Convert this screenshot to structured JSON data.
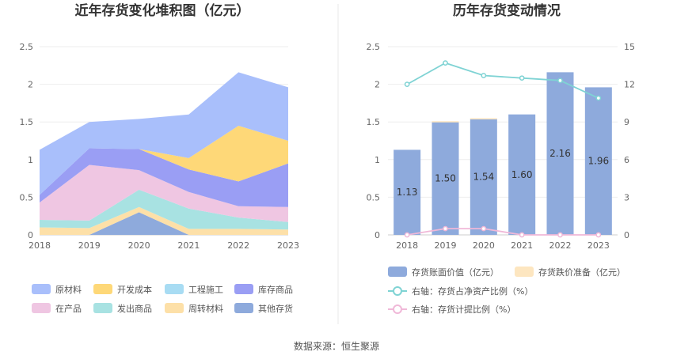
{
  "source": "数据来源：恒生聚源",
  "chart_data": [
    {
      "type": "area",
      "stacked": true,
      "title": "近年存货变化堆积图（亿元）",
      "x": [
        "2018",
        "2019",
        "2020",
        "2021",
        "2022",
        "2023"
      ],
      "ylim": [
        0,
        2.5
      ],
      "yticks": [
        "0",
        "0.5",
        "1",
        "1.5",
        "2",
        "2.5"
      ],
      "series": [
        {
          "name": "其他存货",
          "color": "#8eaadc",
          "values": [
            0.0,
            0.0,
            0.3,
            0.0,
            0.0,
            0.0
          ]
        },
        {
          "name": "周转材料",
          "color": "#fde0a8",
          "values": [
            0.1,
            0.09,
            0.07,
            0.08,
            0.08,
            0.07
          ]
        },
        {
          "name": "发出商品",
          "color": "#a8e2e2",
          "values": [
            0.1,
            0.1,
            0.23,
            0.27,
            0.15,
            0.1
          ]
        },
        {
          "name": "在产品",
          "color": "#efc6e2",
          "values": [
            0.23,
            0.74,
            0.26,
            0.22,
            0.15,
            0.2
          ]
        },
        {
          "name": "库存商品",
          "color": "#9a9ef4",
          "values": [
            0.1,
            0.22,
            0.28,
            0.3,
            0.33,
            0.58
          ]
        },
        {
          "name": "工程施工",
          "color": "#a8dcf3",
          "values": [
            0.0,
            0.0,
            0.0,
            0.0,
            0.0,
            0.0
          ]
        },
        {
          "name": "开发成本",
          "color": "#fed878",
          "values": [
            0.0,
            0.0,
            0.0,
            0.15,
            0.74,
            0.3
          ]
        },
        {
          "name": "原材料",
          "color": "#a9bffb",
          "values": [
            0.6,
            0.35,
            0.4,
            0.58,
            0.71,
            0.71
          ]
        }
      ],
      "legend": {
        "position": "bottom",
        "order": [
          "原材料",
          "开发成本",
          "工程施工",
          "库存商品",
          "在产品",
          "发出商品",
          "周转材料",
          "其他存货"
        ]
      }
    },
    {
      "type": "bar",
      "title": "历年存货变动情况",
      "categories": [
        "2018",
        "2019",
        "2020",
        "2021",
        "2022",
        "2023"
      ],
      "ylim": [
        0,
        2.5
      ],
      "yticks": [
        "0",
        "0.5",
        "1",
        "1.5",
        "2",
        "2.5"
      ],
      "y2lim": [
        0,
        15
      ],
      "y2ticks": [
        "0",
        "3",
        "6",
        "9",
        "12",
        "15"
      ],
      "series": [
        {
          "name": "存货账面价值（亿元）",
          "type": "bar",
          "axis": "left",
          "color": "#8eaadc",
          "values": [
            1.13,
            1.5,
            1.54,
            1.6,
            2.16,
            1.96
          ],
          "labels": [
            "1.13",
            "1.50",
            "1.54",
            "1.60",
            "2.16",
            "1.96"
          ]
        },
        {
          "name": "存货跌价准备（亿元）",
          "type": "bar",
          "axis": "left",
          "stacked": true,
          "color": "#fde6c0",
          "values": [
            0.0,
            0.01,
            0.01,
            0.0,
            0.0,
            0.0
          ]
        },
        {
          "name": "右轴：存货占净资产比例（%）",
          "type": "line",
          "axis": "right",
          "color": "#7fd3d4",
          "values": [
            12.0,
            13.7,
            12.7,
            12.5,
            12.3,
            10.9
          ]
        },
        {
          "name": "右轴：存货计提比例（%）",
          "type": "line",
          "axis": "right",
          "color": "#f0b8d8",
          "values": [
            0.0,
            0.5,
            0.5,
            0.0,
            0.0,
            0.0
          ]
        }
      ],
      "legend": {
        "position": "bottom"
      }
    }
  ]
}
